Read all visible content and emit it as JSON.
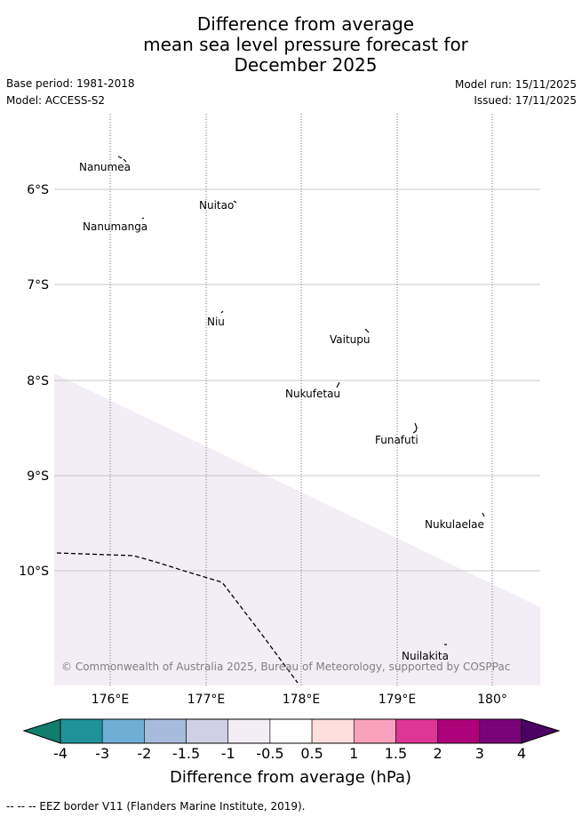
{
  "header": {
    "title_line1": "Difference from average",
    "title_line2": "mean sea level pressure forecast for",
    "title_line3": "December 2025",
    "base_period": "Base period: 1981-2018",
    "model": "Model: ACCESS-S2",
    "model_run": "Model run: 15/11/2025",
    "issued": "Issued: 17/11/2025"
  },
  "map": {
    "lat_range": [
      -11.2,
      -5.25
    ],
    "lon_range": [
      175.5,
      180.5
    ],
    "lat_ticks": [
      "6°S",
      "7°S",
      "8°S",
      "9°S",
      "10°S"
    ],
    "lon_ticks": [
      "176°E",
      "177°E",
      "178°E",
      "179°E",
      "180°"
    ],
    "places": [
      "Nanumea",
      "Nuitao",
      "Nanumanga",
      "Niu",
      "Vaitupu",
      "Nukufetau",
      "Funafuti",
      "Nukulaelae",
      "Nuilakita"
    ],
    "credit": "© Commonwealth of Australia 2025, Bureau of Meteorology, supported by COSPPac",
    "anomaly_zone_class": "-1 to -0.5",
    "anomaly_zone_color": "#f3edf5",
    "eez_border_style": "dashed"
  },
  "colorbar": {
    "title": "Difference from average (hPa)",
    "ticks": [
      "-4",
      "-3",
      "-2",
      "-1.5",
      "-1",
      "-0.5",
      "0.5",
      "1",
      "1.5",
      "2",
      "3",
      "4"
    ],
    "low_extend_color": "#0f7e6e",
    "high_extend_color": "#4b0265",
    "bin_colors": [
      "#1e9399",
      "#6fafd6",
      "#a7bcdc",
      "#d0cfe5",
      "#f3edf5",
      "#ffffff",
      "#fedfdd",
      "#f9a1bd",
      "#de3596",
      "#ad0179",
      "#7a0278"
    ]
  },
  "footer": {
    "legend_text": "-- -- -- EEZ border V11 (Flanders Marine Institute, 2019)."
  }
}
